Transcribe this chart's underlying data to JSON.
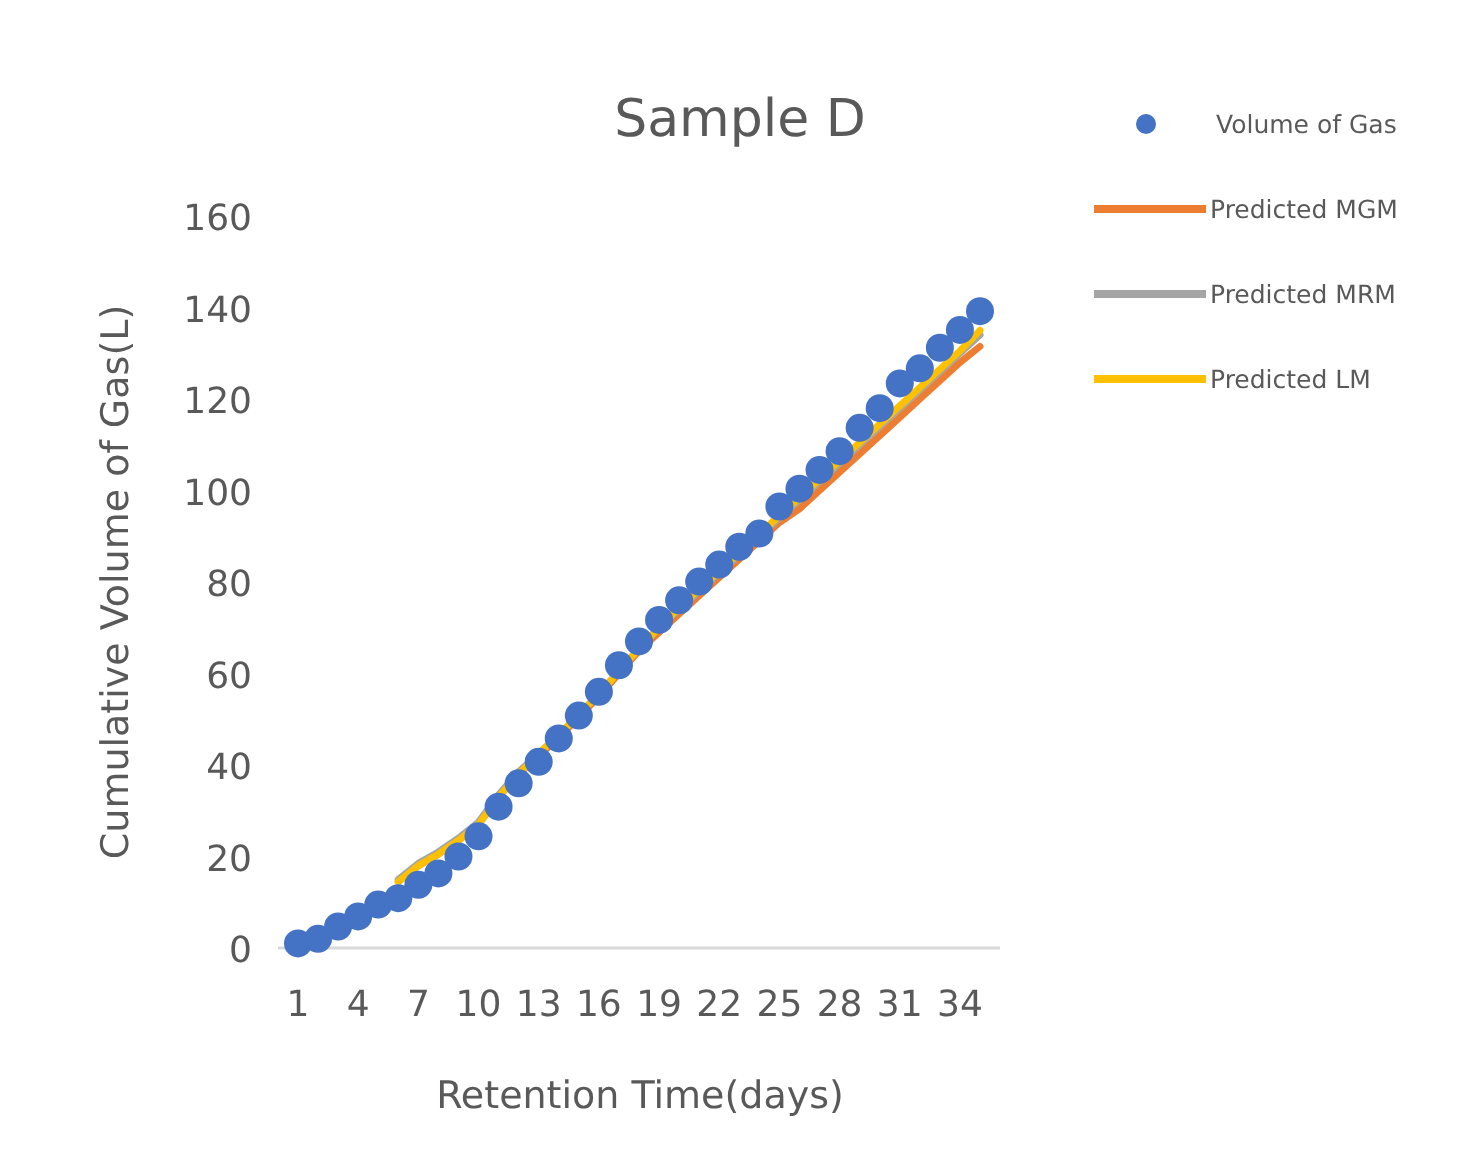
{
  "chart_data": {
    "type": "line",
    "title": "Sample D",
    "xlabel": "Retention Time(days)",
    "ylabel": "Cumulative Volume of Gas(L)",
    "categories": [
      "1",
      null,
      null,
      "4",
      null,
      null,
      "7",
      null,
      null,
      "10",
      null,
      null,
      "13",
      null,
      null,
      "16",
      null,
      null,
      "19",
      null,
      null,
      "22",
      null,
      null,
      "25",
      null,
      null,
      "28",
      null,
      null,
      "31",
      null,
      null,
      "34",
      null
    ],
    "series": [
      {
        "name": "Volume of Gas",
        "type": "scatter",
        "marker": "circle",
        "color": "#4472c4",
        "values": [
          1,
          2,
          4.7,
          6.9,
          9.5,
          10.9,
          13.8,
          16.3,
          20,
          24.4,
          30.9,
          36,
          40.7,
          45.8,
          50.8,
          56,
          61.8,
          67,
          71.7,
          76,
          80.1,
          83.8,
          87.7,
          90.6,
          96.5,
          100.4,
          104.5,
          108.6,
          113.7,
          118,
          123.4,
          126.7,
          131.2,
          135.1,
          139.2
        ]
      },
      {
        "name": "Predicted MGM",
        "type": "line",
        "color": "#ed7d31",
        "values": [
          null,
          null,
          null,
          null,
          null,
          14.5,
          18,
          20.5,
          23.5,
          27,
          33,
          38,
          42,
          46,
          50.5,
          55,
          60,
          65,
          69,
          73,
          77,
          81,
          85,
          89,
          93,
          96,
          100,
          104,
          108,
          112,
          116,
          120,
          124,
          128,
          131.5
        ]
      },
      {
        "name": "Predicted MRM",
        "type": "line",
        "color": "#a5a5a5",
        "values": [
          null,
          null,
          null,
          null,
          null,
          15,
          18.5,
          21,
          24,
          27.5,
          33.5,
          38.5,
          42.5,
          46.5,
          51,
          55.5,
          60.5,
          65.5,
          70,
          74,
          78,
          82,
          86,
          90,
          94,
          98,
          102,
          106,
          110,
          114,
          118,
          122,
          126,
          130,
          134
        ]
      },
      {
        "name": "Predicted LM",
        "type": "line",
        "color": "#ffc000",
        "values": [
          null,
          null,
          null,
          null,
          null,
          14.5,
          18,
          20.5,
          23.5,
          27,
          33,
          38,
          42.5,
          46.5,
          51,
          55.5,
          60.5,
          65.5,
          70,
          74.5,
          78.5,
          82.5,
          86.5,
          90.5,
          94.5,
          98.5,
          102.5,
          106.5,
          110.5,
          114.5,
          118.5,
          122.5,
          126.5,
          130.5,
          135
        ]
      }
    ],
    "ylim": [
      0,
      160
    ],
    "yticks": [
      0,
      20,
      40,
      60,
      80,
      100,
      120,
      140,
      160
    ],
    "grid": false,
    "legend": "right"
  }
}
